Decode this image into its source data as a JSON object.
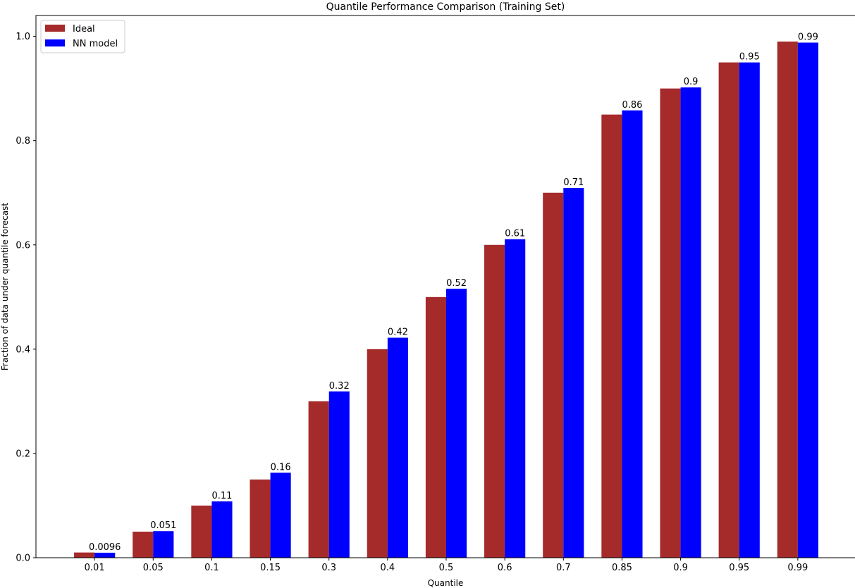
{
  "chart_data": {
    "type": "bar",
    "title": "Quantile Performance Comparison (Training Set)",
    "xlabel": "Quantile",
    "ylabel": "Fraction of data under quantile forecast",
    "categories": [
      "0.01",
      "0.05",
      "0.1",
      "0.15",
      "0.3",
      "0.4",
      "0.5",
      "0.6",
      "0.7",
      "0.85",
      "0.9",
      "0.95",
      "0.99"
    ],
    "series": [
      {
        "name": "Ideal",
        "color": "#a52a2a",
        "values": [
          0.01,
          0.05,
          0.1,
          0.15,
          0.3,
          0.4,
          0.5,
          0.6,
          0.7,
          0.85,
          0.9,
          0.95,
          0.99
        ]
      },
      {
        "name": "NN model",
        "color": "#0000ff",
        "values": [
          0.0096,
          0.051,
          0.108,
          0.163,
          0.319,
          0.422,
          0.516,
          0.611,
          0.709,
          0.858,
          0.902,
          0.95,
          0.988
        ],
        "data_labels": [
          "0.0096",
          "0.051",
          "0.11",
          "0.16",
          "0.32",
          "0.42",
          "0.52",
          "0.61",
          "0.71",
          "0.86",
          "0.9",
          "0.95",
          "0.99"
        ]
      }
    ],
    "ylim": [
      0,
      1.04
    ],
    "yticks": [
      "0.0",
      "0.2",
      "0.4",
      "0.6",
      "0.8",
      "1.0"
    ],
    "grid": false,
    "legend_placement": "top-left"
  }
}
